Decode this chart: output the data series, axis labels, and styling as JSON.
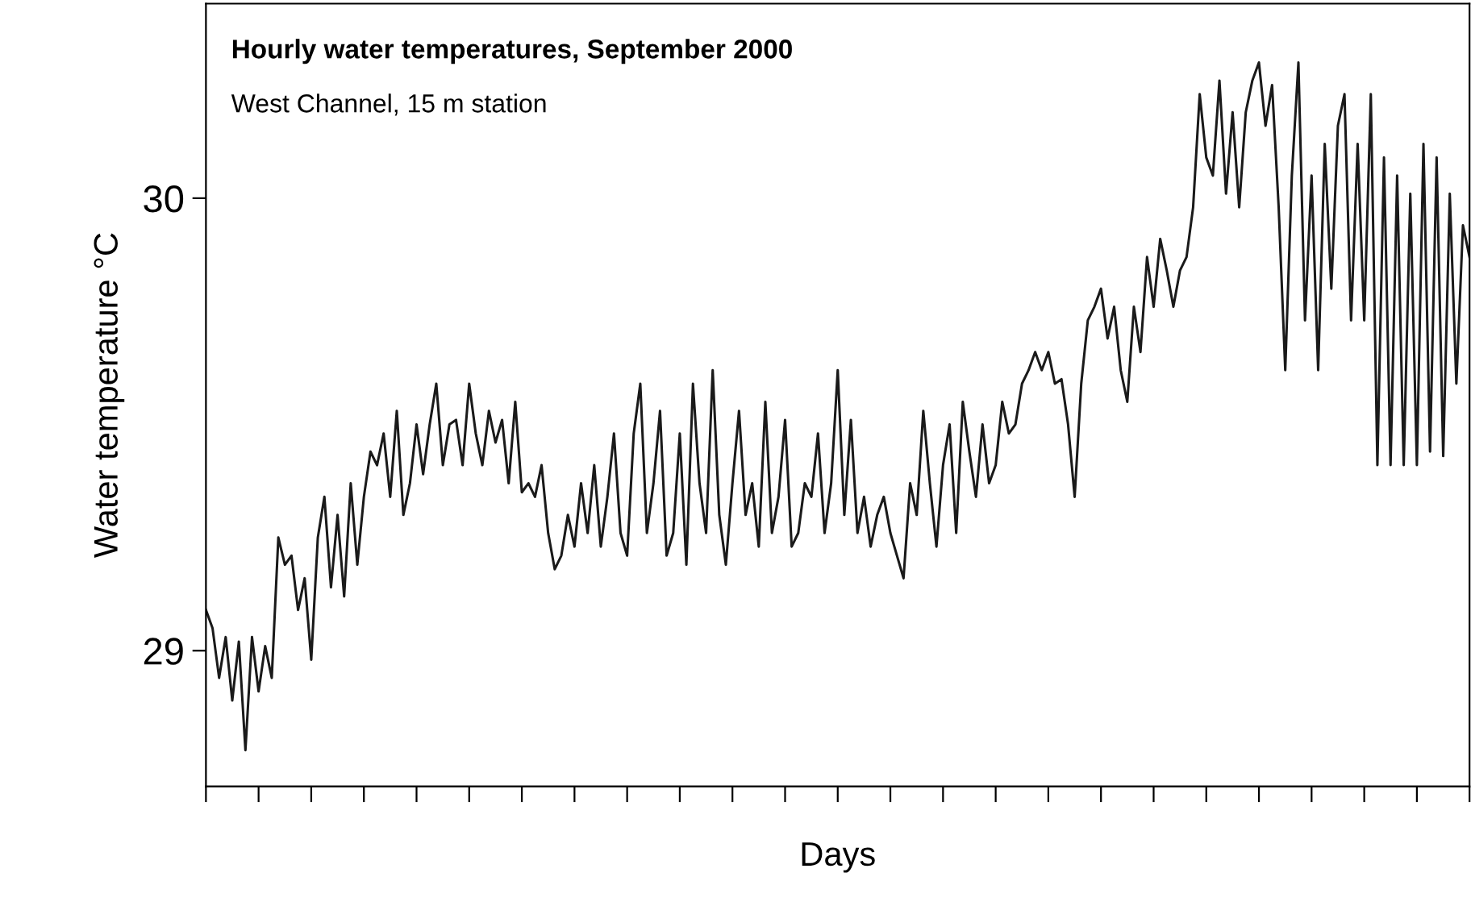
{
  "chart_data": {
    "type": "line",
    "title": "Hourly water temperatures, September 2000",
    "subtitle": "West Channel, 15 m station",
    "xlabel": "Days",
    "ylabel": "Water temperature °C",
    "categories": [
      null,
      null,
      null,
      null,
      null,
      null,
      null,
      null,
      null,
      null,
      null,
      null,
      null,
      null,
      null,
      null,
      null,
      null,
      null,
      null,
      null,
      null,
      null,
      null,
      null,
      null,
      null,
      null,
      null,
      null,
      null,
      null,
      null,
      null,
      null,
      null,
      null,
      null,
      null,
      null,
      null,
      null,
      null,
      null,
      null,
      null,
      null,
      null,
      null,
      null,
      null,
      null,
      null,
      null,
      null,
      null,
      null,
      null,
      null,
      null,
      null,
      null,
      null,
      null,
      null,
      null,
      null,
      null,
      null,
      null,
      null,
      null,
      null,
      null,
      null,
      null,
      null,
      null,
      null,
      null,
      null,
      null,
      null,
      null,
      null,
      null,
      null,
      null,
      null,
      null,
      null,
      null,
      null,
      null,
      null,
      null,
      null,
      null,
      null,
      null,
      null,
      null,
      null,
      null,
      null,
      null,
      null,
      null,
      null,
      null,
      null,
      null,
      null,
      null,
      null,
      null,
      null,
      null,
      null,
      null,
      null,
      null,
      null,
      null,
      null,
      null,
      null,
      null,
      null,
      null,
      null,
      null,
      null,
      null,
      null,
      null,
      null,
      null,
      null,
      null,
      null,
      null,
      null,
      null,
      null,
      null,
      null,
      null,
      null,
      null,
      null,
      null,
      null,
      null,
      null,
      null,
      null,
      null,
      null,
      null,
      null,
      null,
      null,
      null,
      null,
      null,
      null,
      null,
      null,
      null,
      null,
      null,
      null,
      null,
      null,
      null,
      null,
      null,
      null,
      null,
      null,
      null,
      null,
      null,
      null,
      null,
      null,
      null,
      null,
      null,
      null,
      null,
      null
    ],
    "ylim": [
      28.7,
      30.43
    ],
    "yticks": [
      29,
      30
    ],
    "tick_labels": "y",
    "line_style": "solid",
    "series": [
      {
        "color": "#1a1a1a",
        "values": [
          29.09,
          29.05,
          28.94,
          29.03,
          28.89,
          29.02,
          28.78,
          29.03,
          28.91,
          29.01,
          28.94,
          29.25,
          29.19,
          29.21,
          29.09,
          29.16,
          28.98,
          29.25,
          29.34,
          29.14,
          29.3,
          29.12,
          29.37,
          29.19,
          29.34,
          29.44,
          29.41,
          29.48,
          29.34,
          29.53,
          29.3,
          29.37,
          29.5,
          29.39,
          29.5,
          29.59,
          29.41,
          29.5,
          29.51,
          29.41,
          29.59,
          29.48,
          29.41,
          29.53,
          29.46,
          29.51,
          29.37,
          29.55,
          29.35,
          29.37,
          29.34,
          29.41,
          29.26,
          29.18,
          29.21,
          29.3,
          29.23,
          29.37,
          29.26,
          29.41,
          29.23,
          29.34,
          29.48,
          29.26,
          29.21,
          29.48,
          29.59,
          29.26,
          29.37,
          29.53,
          29.21,
          29.26,
          29.48,
          29.19,
          29.59,
          29.37,
          29.26,
          29.62,
          29.3,
          29.19,
          29.37,
          29.53,
          29.3,
          29.37,
          29.23,
          29.55,
          29.26,
          29.34,
          29.51,
          29.23,
          29.26,
          29.37,
          29.34,
          29.48,
          29.26,
          29.37,
          29.62,
          29.3,
          29.51,
          29.26,
          29.34,
          29.23,
          29.3,
          29.34,
          29.26,
          29.21,
          29.16,
          29.37,
          29.3,
          29.53,
          29.37,
          29.23,
          29.41,
          29.5,
          29.26,
          29.55,
          29.44,
          29.34,
          29.5,
          29.37,
          29.41,
          29.55,
          29.48,
          29.5,
          29.59,
          29.62,
          29.66,
          29.62,
          29.66,
          29.59,
          29.6,
          29.5,
          29.34,
          29.59,
          29.73,
          29.76,
          29.8,
          29.69,
          29.76,
          29.62,
          29.55,
          29.76,
          29.66,
          29.87,
          29.76,
          29.91,
          29.84,
          29.76,
          29.84,
          29.87,
          29.98,
          30.23,
          30.09,
          30.05,
          30.26,
          30.01,
          30.19,
          29.98,
          30.19,
          30.26,
          30.3,
          30.16,
          30.25,
          29.98,
          29.62,
          30.05,
          30.3,
          29.73,
          30.05,
          29.62,
          30.12,
          29.8,
          30.16,
          30.23,
          29.73,
          30.12,
          29.73,
          30.23,
          29.41,
          30.09,
          29.41,
          30.05,
          29.41,
          30.01,
          29.41,
          30.12,
          29.44,
          30.09,
          29.43,
          30.01,
          29.59,
          29.94,
          29.87
        ]
      }
    ]
  }
}
